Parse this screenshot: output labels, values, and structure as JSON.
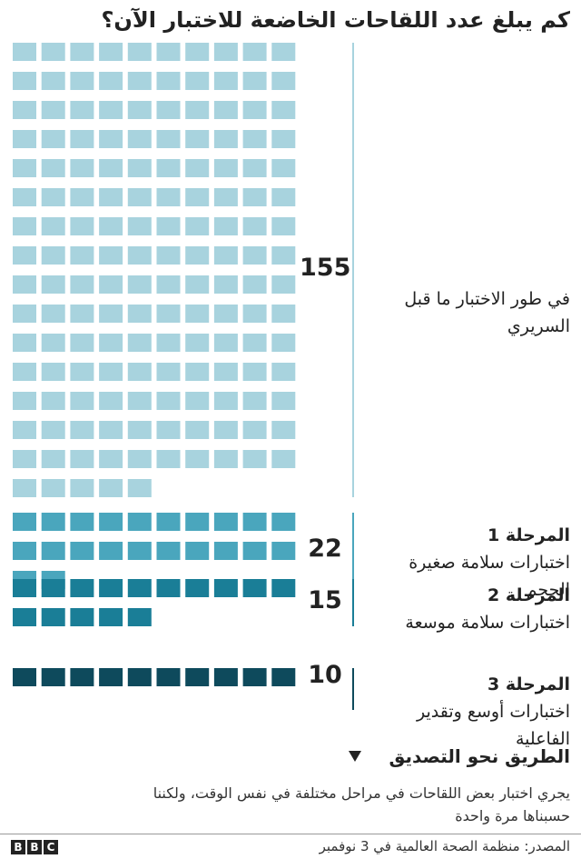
{
  "title": "كم يبلغ عدد اللقاحات الخاضعة للاختبار الآن؟",
  "chart_data": {
    "type": "waffle",
    "series": [
      {
        "value": 155,
        "label": "في طور الاختبار ما قبل السريري",
        "phase": "",
        "color": "#a8d3de"
      },
      {
        "value": 22,
        "label": "اختبارات سلامة صغيرة الحجم",
        "phase": "المرحلة 1",
        "color": "#4aa6bd"
      },
      {
        "value": 15,
        "label": "اختبارات سلامة موسعة",
        "phase": "المرحلة 2",
        "color": "#1a7e97"
      },
      {
        "value": 10,
        "label": "اختبارات أوسع وتقدير الفاعلية",
        "phase": "المرحلة 3",
        "color": "#0e4a5c"
      }
    ]
  },
  "path_label": "الطريق نحو التصديق",
  "note": "يجري اختبار بعض اللقاحات في مراحل مختلفة في نفس الوقت، ولكننا حسبناها مرة واحدة",
  "source": "المصدر: منظمة الصحة العالمية في 3 نوفمبر",
  "logo": [
    "B",
    "B",
    "C"
  ]
}
